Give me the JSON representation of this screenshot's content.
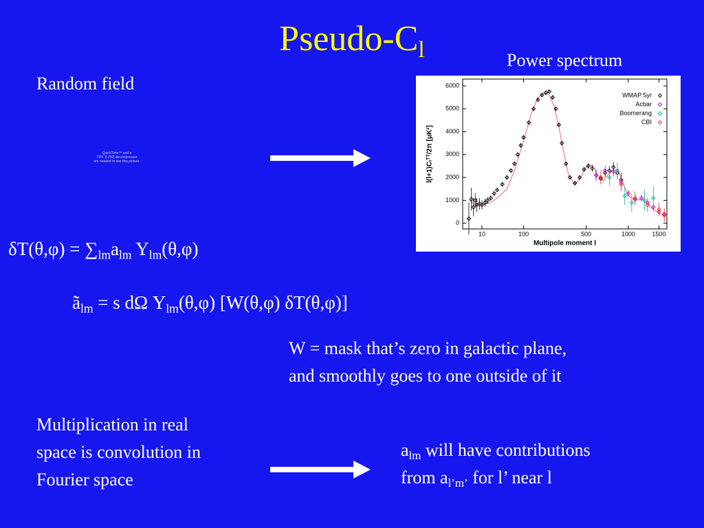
{
  "title": [
    "Pseudo-C",
    {
      "text": "l",
      "sub": true
    }
  ],
  "labels": {
    "random_field": "Random field",
    "power_spectrum": "Power spectrum"
  },
  "placeholder": [
    "QuickTime™ and a",
    "TIFF (LZW) decompressor",
    "are needed to see this picture."
  ],
  "equations": [
    [
      "δT(θ,φ) = ∑",
      {
        "text": "lm",
        "sub": true
      },
      "a",
      {
        "text": "lm",
        "sub": true
      },
      " Y",
      {
        "text": "lm",
        "sub": true
      },
      "(θ,φ)"
    ],
    [
      "ã",
      {
        "text": "lm",
        "sub": true
      },
      " = s dΩ Y",
      {
        "text": "lm",
        "sub": true
      },
      "(θ,φ) [W(θ,φ) δT(θ,φ)]"
    ]
  ],
  "mask_note": [
    "W = mask that’s zero in galactic plane,",
    "and smoothly goes to one outside of it"
  ],
  "convolution_note": [
    "Multiplication in real",
    "space is convolution in",
    "Fourier space"
  ],
  "contributions_note": [
    [
      "a",
      {
        "text": "lm",
        "sub": true
      },
      " will have contributions"
    ],
    [
      "from a",
      {
        "text": "l’m’",
        "sub": true
      },
      " for l’ near l"
    ]
  ],
  "chart_data": {
    "type": "scatter",
    "xlabel": "Multipole moment l",
    "ylabel": "l(l+1)Cₗᵀᵀ/2π [μK²]",
    "xlim": [
      0.5,
      1650
    ],
    "xticks": [
      10,
      100,
      500,
      1000,
      1500
    ],
    "ylim": [
      -250,
      6300
    ],
    "yticks": [
      0,
      1000,
      2000,
      3000,
      4000,
      5000,
      6000
    ],
    "legend": "upper right",
    "series": [
      {
        "name": "WMAP 5yr",
        "color": "#000000",
        "x": [
          2,
          3,
          4,
          5,
          6,
          8,
          10,
          13,
          16,
          20,
          25,
          30,
          40,
          50,
          60,
          70,
          80,
          90,
          100,
          120,
          140,
          160,
          180,
          200,
          220,
          240,
          260,
          280,
          300,
          330,
          360,
          400,
          440,
          480,
          520,
          560,
          600,
          650,
          700,
          750,
          800,
          850,
          900
        ],
        "values": [
          200,
          1050,
          700,
          1000,
          800,
          850,
          800,
          900,
          1000,
          1100,
          1300,
          1450,
          1700,
          2000,
          2300,
          2600,
          3000,
          3400,
          3750,
          4400,
          5000,
          5400,
          5600,
          5700,
          5750,
          5500,
          5000,
          4300,
          3500,
          2600,
          2000,
          1750,
          2000,
          2350,
          2500,
          2400,
          2100,
          1950,
          2200,
          2300,
          2450,
          2200,
          1900
        ],
        "errors": [
          700,
          500,
          400,
          300,
          300,
          250,
          200,
          180,
          150,
          120,
          100,
          100,
          100,
          100,
          100,
          100,
          100,
          100,
          100,
          100,
          100,
          100,
          100,
          100,
          100,
          100,
          100,
          100,
          100,
          100,
          100,
          100,
          100,
          100,
          120,
          150,
          150,
          160,
          180,
          200,
          220,
          250,
          300
        ]
      },
      {
        "name": "Acbar",
        "color": "#b000c8",
        "x": [
          600,
          700,
          800,
          900,
          1000,
          1100,
          1200,
          1300,
          1400,
          1500,
          1600
        ],
        "values": [
          2100,
          2300,
          2250,
          1800,
          1300,
          1050,
          1100,
          900,
          700,
          500,
          400
        ],
        "errors": [
          250,
          200,
          200,
          200,
          150,
          150,
          150,
          150,
          150,
          150,
          150
        ]
      },
      {
        "name": "Boomerang",
        "color": "#00b090",
        "x": [
          750,
          850,
          950,
          1050,
          1250,
          1400
        ],
        "values": [
          2000,
          2300,
          1200,
          900,
          1000,
          1100
        ],
        "errors": [
          350,
          350,
          400,
          400,
          450,
          500
        ]
      },
      {
        "name": "CBI",
        "color": "#ff2020",
        "x": [
          650,
          900,
          1100,
          1300,
          1500,
          1600
        ],
        "values": [
          2000,
          1700,
          1100,
          800,
          600,
          350
        ],
        "errors": [
          300,
          300,
          300,
          300,
          300,
          300
        ]
      }
    ],
    "curve": {
      "color": "#ff6080",
      "x": [
        2,
        5,
        10,
        20,
        30,
        50,
        70,
        100,
        130,
        160,
        190,
        220,
        250,
        280,
        310,
        350,
        400,
        450,
        500,
        540,
        580,
        620,
        680,
        740,
        800,
        860,
        920,
        1000,
        1100,
        1200,
        1300,
        1400,
        1500,
        1600
      ],
      "values": [
        1000,
        800,
        800,
        900,
        1100,
        1500,
        2300,
        3600,
        4800,
        5500,
        5700,
        5600,
        5100,
        4200,
        3200,
        2100,
        1700,
        2000,
        2450,
        2550,
        2400,
        2050,
        1850,
        2150,
        2350,
        2300,
        1800,
        1200,
        1000,
        1050,
        850,
        600,
        450,
        300
      ]
    }
  }
}
